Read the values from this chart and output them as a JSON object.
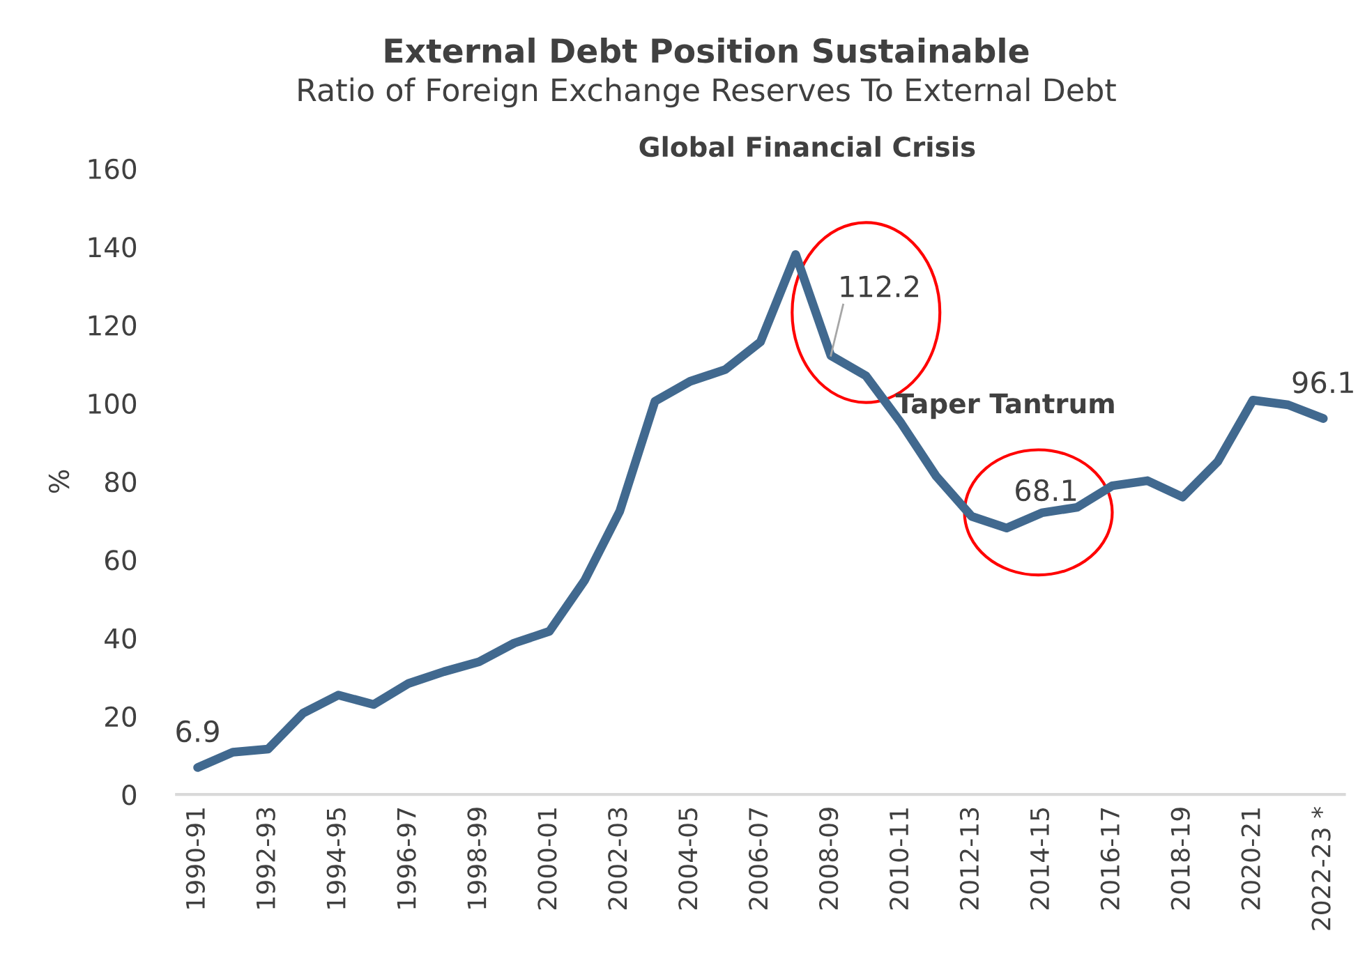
{
  "chart_data": {
    "type": "line",
    "title": "External Debt Position Sustainable",
    "subtitle": "Ratio of Foreign Exchange Reserves To External Debt",
    "ylabel": "%",
    "categories": [
      "1990-91",
      null,
      "1992-93",
      null,
      "1994-95",
      null,
      "1996-97",
      null,
      "1998-99",
      null,
      "2000-01",
      null,
      "2002-03",
      null,
      "2004-05",
      null,
      "2006-07",
      null,
      "2008-09",
      null,
      "2010-11",
      null,
      "2012-13",
      null,
      "2014-15",
      null,
      "2016-17",
      null,
      "2018-19",
      null,
      "2020-21",
      null,
      "2022-23 *"
    ],
    "series": [
      {
        "color": "#41698f",
        "values": [
          6.9,
          10.8,
          11.6,
          20.8,
          25.4,
          23.0,
          28.4,
          31.4,
          33.9,
          38.7,
          41.7,
          54.7,
          72.4,
          100.5,
          105.6,
          108.6,
          115.7,
          138.0,
          112.2,
          107.0,
          94.9,
          81.3,
          71.1,
          68.1,
          72.0,
          73.4,
          78.9,
          80.2,
          76.0,
          85.1,
          100.8,
          99.6,
          96.1
        ],
        "value_labels": [
          "6.9",
          null,
          null,
          null,
          null,
          null,
          null,
          null,
          null,
          null,
          null,
          null,
          null,
          null,
          null,
          null,
          null,
          null,
          "112.2",
          null,
          null,
          null,
          null,
          "68.1",
          null,
          null,
          null,
          null,
          null,
          null,
          null,
          null,
          "96.1"
        ]
      }
    ],
    "annotations": [
      "Global Financial Crisis",
      "Taper Tantrum"
    ],
    "ylim": [
      0,
      160
    ],
    "yticks": [
      0,
      20,
      40,
      60,
      80,
      100,
      120,
      140,
      160
    ],
    "grid": false,
    "legend": false,
    "marker": "none",
    "line_style": "solid"
  }
}
